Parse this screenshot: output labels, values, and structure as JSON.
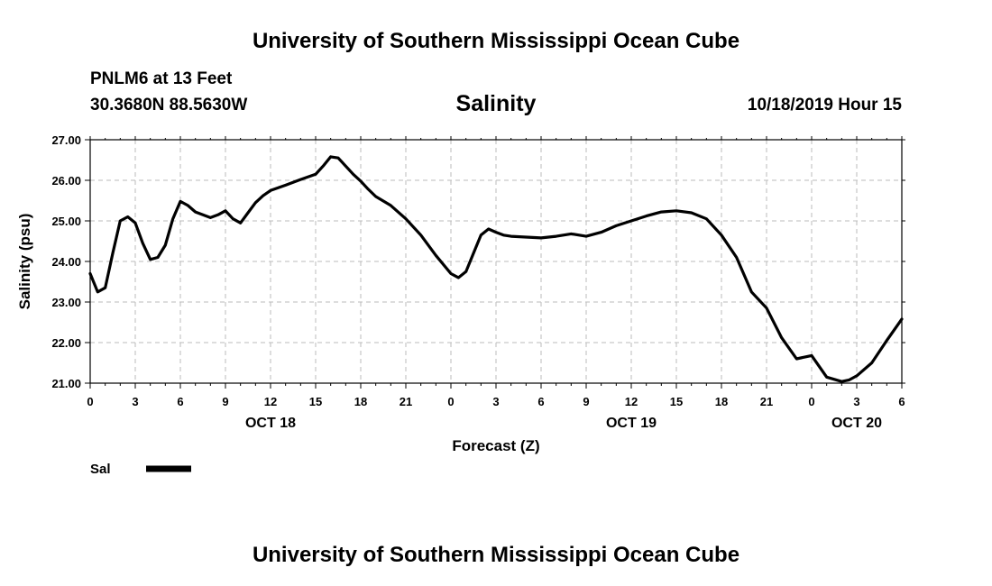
{
  "header": {
    "title_top": "University of Southern Mississippi Ocean Cube",
    "title_bottom": "University of Southern Mississippi Ocean Cube",
    "station": "PNLM6 at 13 Feet",
    "location": "30.3680N 88.5630W",
    "variable": "Salinity",
    "date": "10/18/2019 Hour 15"
  },
  "chart_data": {
    "type": "line",
    "ylabel": "Salinity (psu)",
    "xlabel": "Forecast (Z)",
    "ylim": [
      21.0,
      27.0
    ],
    "xlim": [
      0,
      54
    ],
    "y_ticks": [
      "21.00",
      "22.00",
      "23.00",
      "24.00",
      "25.00",
      "26.00",
      "27.00"
    ],
    "x_tick_labels": [
      "0",
      "3",
      "6",
      "9",
      "12",
      "15",
      "18",
      "21",
      "0",
      "3",
      "6",
      "9",
      "12",
      "15",
      "18",
      "21",
      "0",
      "3",
      "6"
    ],
    "day_labels": [
      {
        "label": "OCT 18",
        "hour": 12
      },
      {
        "label": "OCT 19",
        "hour": 36
      },
      {
        "label": "OCT 20",
        "hour": 51
      }
    ],
    "grid": true,
    "legend": {
      "placement": "bottom-left",
      "entries": [
        {
          "label": "Sal",
          "color": "#000000"
        }
      ]
    },
    "series": [
      {
        "name": "Sal",
        "color": "#000000",
        "x": [
          0,
          0.5,
          1,
          1.5,
          2,
          2.5,
          3,
          3.5,
          4,
          4.5,
          5,
          5.5,
          6,
          6.5,
          7,
          7.5,
          8,
          8.5,
          9,
          9.5,
          10,
          10.5,
          11,
          11.5,
          12,
          13,
          14,
          15,
          15.5,
          16,
          16.5,
          17,
          17.5,
          18,
          18.5,
          19,
          20,
          21,
          22,
          23,
          24,
          24.5,
          25,
          25.5,
          26,
          26.5,
          27,
          27.5,
          28,
          29,
          30,
          31,
          32,
          33,
          34,
          35,
          36,
          37,
          38,
          39,
          40,
          41,
          42,
          43,
          44,
          45,
          46,
          47,
          48,
          49,
          50,
          50.5,
          51,
          52,
          53,
          54
        ],
        "values": [
          23.7,
          23.25,
          23.35,
          24.2,
          25.0,
          25.1,
          24.95,
          24.45,
          24.05,
          24.1,
          24.4,
          25.05,
          25.48,
          25.38,
          25.22,
          25.15,
          25.08,
          25.15,
          25.25,
          25.05,
          24.95,
          25.2,
          25.45,
          25.62,
          25.75,
          25.88,
          26.02,
          26.15,
          26.35,
          26.58,
          26.55,
          26.35,
          26.15,
          25.98,
          25.78,
          25.6,
          25.38,
          25.05,
          24.65,
          24.15,
          23.7,
          23.6,
          23.75,
          24.2,
          24.65,
          24.8,
          24.72,
          24.65,
          24.62,
          24.6,
          24.58,
          24.62,
          24.68,
          24.62,
          24.72,
          24.88,
          25.0,
          25.12,
          25.22,
          25.25,
          25.2,
          25.05,
          24.65,
          24.1,
          23.25,
          22.85,
          22.12,
          21.6,
          21.68,
          21.15,
          21.04,
          21.08,
          21.18,
          21.5,
          22.05,
          22.58
        ]
      }
    ]
  }
}
